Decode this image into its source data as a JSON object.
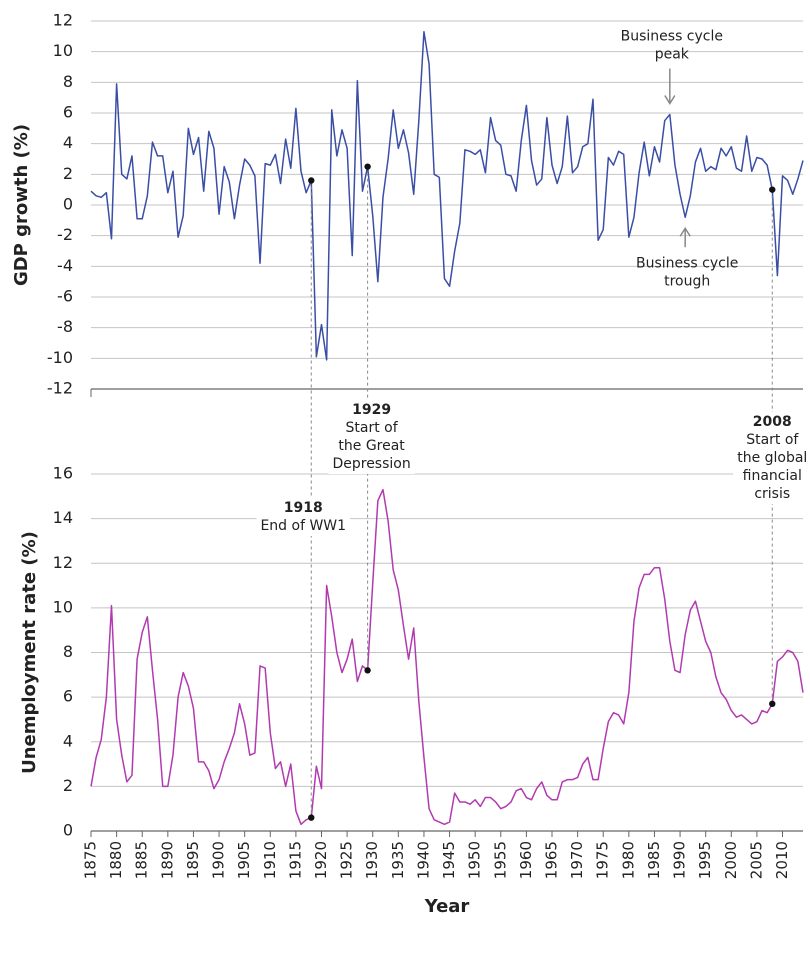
{
  "chart_data": [
    {
      "type": "line",
      "ylabel": "GDP growth (%)",
      "color": "#3a4ea6",
      "x": [
        1875,
        1876,
        1877,
        1878,
        1879,
        1880,
        1881,
        1882,
        1883,
        1884,
        1885,
        1886,
        1887,
        1888,
        1889,
        1890,
        1891,
        1892,
        1893,
        1894,
        1895,
        1896,
        1897,
        1898,
        1899,
        1900,
        1901,
        1902,
        1903,
        1904,
        1905,
        1906,
        1907,
        1908,
        1909,
        1910,
        1911,
        1912,
        1913,
        1914,
        1915,
        1916,
        1917,
        1918,
        1919,
        1920,
        1921,
        1922,
        1923,
        1924,
        1925,
        1926,
        1927,
        1928,
        1929,
        1930,
        1931,
        1932,
        1933,
        1934,
        1935,
        1936,
        1937,
        1938,
        1939,
        1940,
        1941,
        1942,
        1943,
        1944,
        1945,
        1946,
        1947,
        1948,
        1949,
        1950,
        1951,
        1952,
        1953,
        1954,
        1955,
        1956,
        1957,
        1958,
        1959,
        1960,
        1961,
        1962,
        1963,
        1964,
        1965,
        1966,
        1967,
        1968,
        1969,
        1970,
        1971,
        1972,
        1973,
        1974,
        1975,
        1976,
        1977,
        1978,
        1979,
        1980,
        1981,
        1982,
        1983,
        1984,
        1985,
        1986,
        1987,
        1988,
        1989,
        1990,
        1991,
        1992,
        1993,
        1994,
        1995,
        1996,
        1997,
        1998,
        1999,
        2000,
        2001,
        2002,
        2003,
        2004,
        2005,
        2006,
        2007,
        2008,
        2009,
        2010,
        2011,
        2012,
        2013,
        2014
      ],
      "values": [
        0.9,
        0.6,
        0.5,
        0.8,
        -2.2,
        7.9,
        2.0,
        1.7,
        3.2,
        -0.9,
        -0.9,
        0.6,
        4.1,
        3.2,
        3.2,
        0.8,
        2.2,
        -2.1,
        -0.7,
        5.0,
        3.3,
        4.4,
        0.9,
        4.8,
        3.7,
        -0.6,
        2.5,
        1.5,
        -0.9,
        1.3,
        3.0,
        2.6,
        1.9,
        -3.8,
        2.7,
        2.6,
        3.3,
        1.4,
        4.3,
        2.4,
        6.3,
        2.2,
        0.8,
        1.6,
        -9.9,
        -7.8,
        -10.1,
        6.2,
        3.2,
        4.9,
        3.7,
        -3.3,
        8.1,
        0.9,
        2.5,
        -0.7,
        -5.0,
        0.5,
        3.0,
        6.2,
        3.7,
        4.9,
        3.4,
        0.7,
        5.5,
        11.3,
        9.2,
        2.0,
        1.8,
        -4.8,
        -5.3,
        -3.0,
        -1.2,
        3.6,
        3.5,
        3.3,
        3.6,
        2.1,
        5.7,
        4.2,
        3.9,
        2.0,
        1.9,
        0.9,
        4.2,
        6.5,
        2.9,
        1.3,
        1.7,
        5.7,
        2.6,
        1.4,
        2.5,
        5.8,
        2.1,
        2.5,
        3.8,
        4.0,
        6.9,
        -2.3,
        -1.6,
        3.1,
        2.6,
        3.5,
        3.3,
        -2.1,
        -0.8,
        2.1,
        4.1,
        1.9,
        3.8,
        2.8,
        5.5,
        5.9,
        2.6,
        0.7,
        -0.8,
        0.6,
        2.8,
        3.7,
        2.2,
        2.5,
        2.3,
        3.7,
        3.2,
        3.8,
        2.4,
        2.2,
        4.5,
        2.2,
        3.1,
        3.0,
        2.6,
        1.0,
        -4.6,
        1.9,
        1.6,
        0.7,
        1.7,
        2.9
      ],
      "xlim": [
        1875,
        2014
      ],
      "ylim": [
        -12,
        12
      ],
      "yticks": [
        -12,
        -10,
        -8,
        -6,
        -4,
        -2,
        0,
        2,
        4,
        6,
        8,
        10,
        12
      ],
      "grid": true,
      "annotations": [
        {
          "x": 1988,
          "text": [
            "Business cycle",
            "peak"
          ],
          "position": "above"
        },
        {
          "x": 1991,
          "text": [
            "Business cycle",
            "trough"
          ],
          "position": "below"
        }
      ]
    },
    {
      "type": "line",
      "ylabel": "Unemployment rate (%)",
      "xlabel": "Year",
      "color": "#b23ab0",
      "x": [
        1875,
        1876,
        1877,
        1878,
        1879,
        1880,
        1881,
        1882,
        1883,
        1884,
        1885,
        1886,
        1887,
        1888,
        1889,
        1890,
        1891,
        1892,
        1893,
        1894,
        1895,
        1896,
        1897,
        1898,
        1899,
        1900,
        1901,
        1902,
        1903,
        1904,
        1905,
        1906,
        1907,
        1908,
        1909,
        1910,
        1911,
        1912,
        1913,
        1914,
        1915,
        1916,
        1917,
        1918,
        1919,
        1920,
        1921,
        1922,
        1923,
        1924,
        1925,
        1926,
        1927,
        1928,
        1929,
        1930,
        1931,
        1932,
        1933,
        1934,
        1935,
        1936,
        1937,
        1938,
        1939,
        1940,
        1941,
        1942,
        1943,
        1944,
        1945,
        1946,
        1947,
        1948,
        1949,
        1950,
        1951,
        1952,
        1953,
        1954,
        1955,
        1956,
        1957,
        1958,
        1959,
        1960,
        1961,
        1962,
        1963,
        1964,
        1965,
        1966,
        1967,
        1968,
        1969,
        1970,
        1971,
        1972,
        1973,
        1974,
        1975,
        1976,
        1977,
        1978,
        1979,
        1980,
        1981,
        1982,
        1983,
        1984,
        1985,
        1986,
        1987,
        1988,
        1989,
        1990,
        1991,
        1992,
        1993,
        1994,
        1995,
        1996,
        1997,
        1998,
        1999,
        2000,
        2001,
        2002,
        2003,
        2004,
        2005,
        2006,
        2007,
        2008,
        2009,
        2010,
        2011,
        2012,
        2013,
        2014
      ],
      "values": [
        2.0,
        3.3,
        4.1,
        6.0,
        10.1,
        5.0,
        3.4,
        2.2,
        2.5,
        7.7,
        8.9,
        9.6,
        7.2,
        5.0,
        2.0,
        2.0,
        3.4,
        6.0,
        7.1,
        6.5,
        5.5,
        3.1,
        3.1,
        2.7,
        1.9,
        2.3,
        3.1,
        3.7,
        4.4,
        5.7,
        4.8,
        3.4,
        3.5,
        7.4,
        7.3,
        4.4,
        2.8,
        3.1,
        2.0,
        3.0,
        0.9,
        0.3,
        0.5,
        0.6,
        2.9,
        1.9,
        11.0,
        9.6,
        8.0,
        7.1,
        7.7,
        8.6,
        6.7,
        7.4,
        7.2,
        11.1,
        14.8,
        15.3,
        13.9,
        11.7,
        10.8,
        9.2,
        7.7,
        9.1,
        5.8,
        3.3,
        1.0,
        0.5,
        0.4,
        0.3,
        0.4,
        1.7,
        1.3,
        1.3,
        1.2,
        1.4,
        1.1,
        1.5,
        1.5,
        1.3,
        1.0,
        1.1,
        1.3,
        1.8,
        1.9,
        1.5,
        1.4,
        1.9,
        2.2,
        1.6,
        1.4,
        1.4,
        2.2,
        2.3,
        2.3,
        2.4,
        3.0,
        3.3,
        2.3,
        2.3,
        3.7,
        4.9,
        5.3,
        5.2,
        4.8,
        6.2,
        9.4,
        10.9,
        11.5,
        11.5,
        11.8,
        11.8,
        10.4,
        8.5,
        7.2,
        7.1,
        8.8,
        9.9,
        10.3,
        9.4,
        8.5,
        8.0,
        6.9,
        6.2,
        5.9,
        5.4,
        5.1,
        5.2,
        5.0,
        4.8,
        4.9,
        5.4,
        5.3,
        5.7,
        7.6,
        7.8,
        8.1,
        8.0,
        7.6,
        6.2
      ],
      "xlim": [
        1875,
        2014
      ],
      "ylim": [
        0,
        16
      ],
      "yticks": [
        0,
        2,
        4,
        6,
        8,
        10,
        12,
        14,
        16
      ],
      "xticks": [
        1875,
        1880,
        1885,
        1890,
        1895,
        1900,
        1905,
        1910,
        1915,
        1920,
        1925,
        1930,
        1935,
        1940,
        1945,
        1950,
        1955,
        1960,
        1965,
        1970,
        1975,
        1980,
        1985,
        1990,
        1995,
        2000,
        2005,
        2010
      ],
      "grid": true
    }
  ],
  "events": [
    {
      "year": 1918,
      "text": [
        "End of WW1"
      ]
    },
    {
      "year": 1929,
      "text": [
        "Start of",
        "the Great",
        "Depression"
      ]
    },
    {
      "year": 2008,
      "text": [
        "Start of",
        "the global",
        "financial",
        "crisis"
      ]
    }
  ]
}
